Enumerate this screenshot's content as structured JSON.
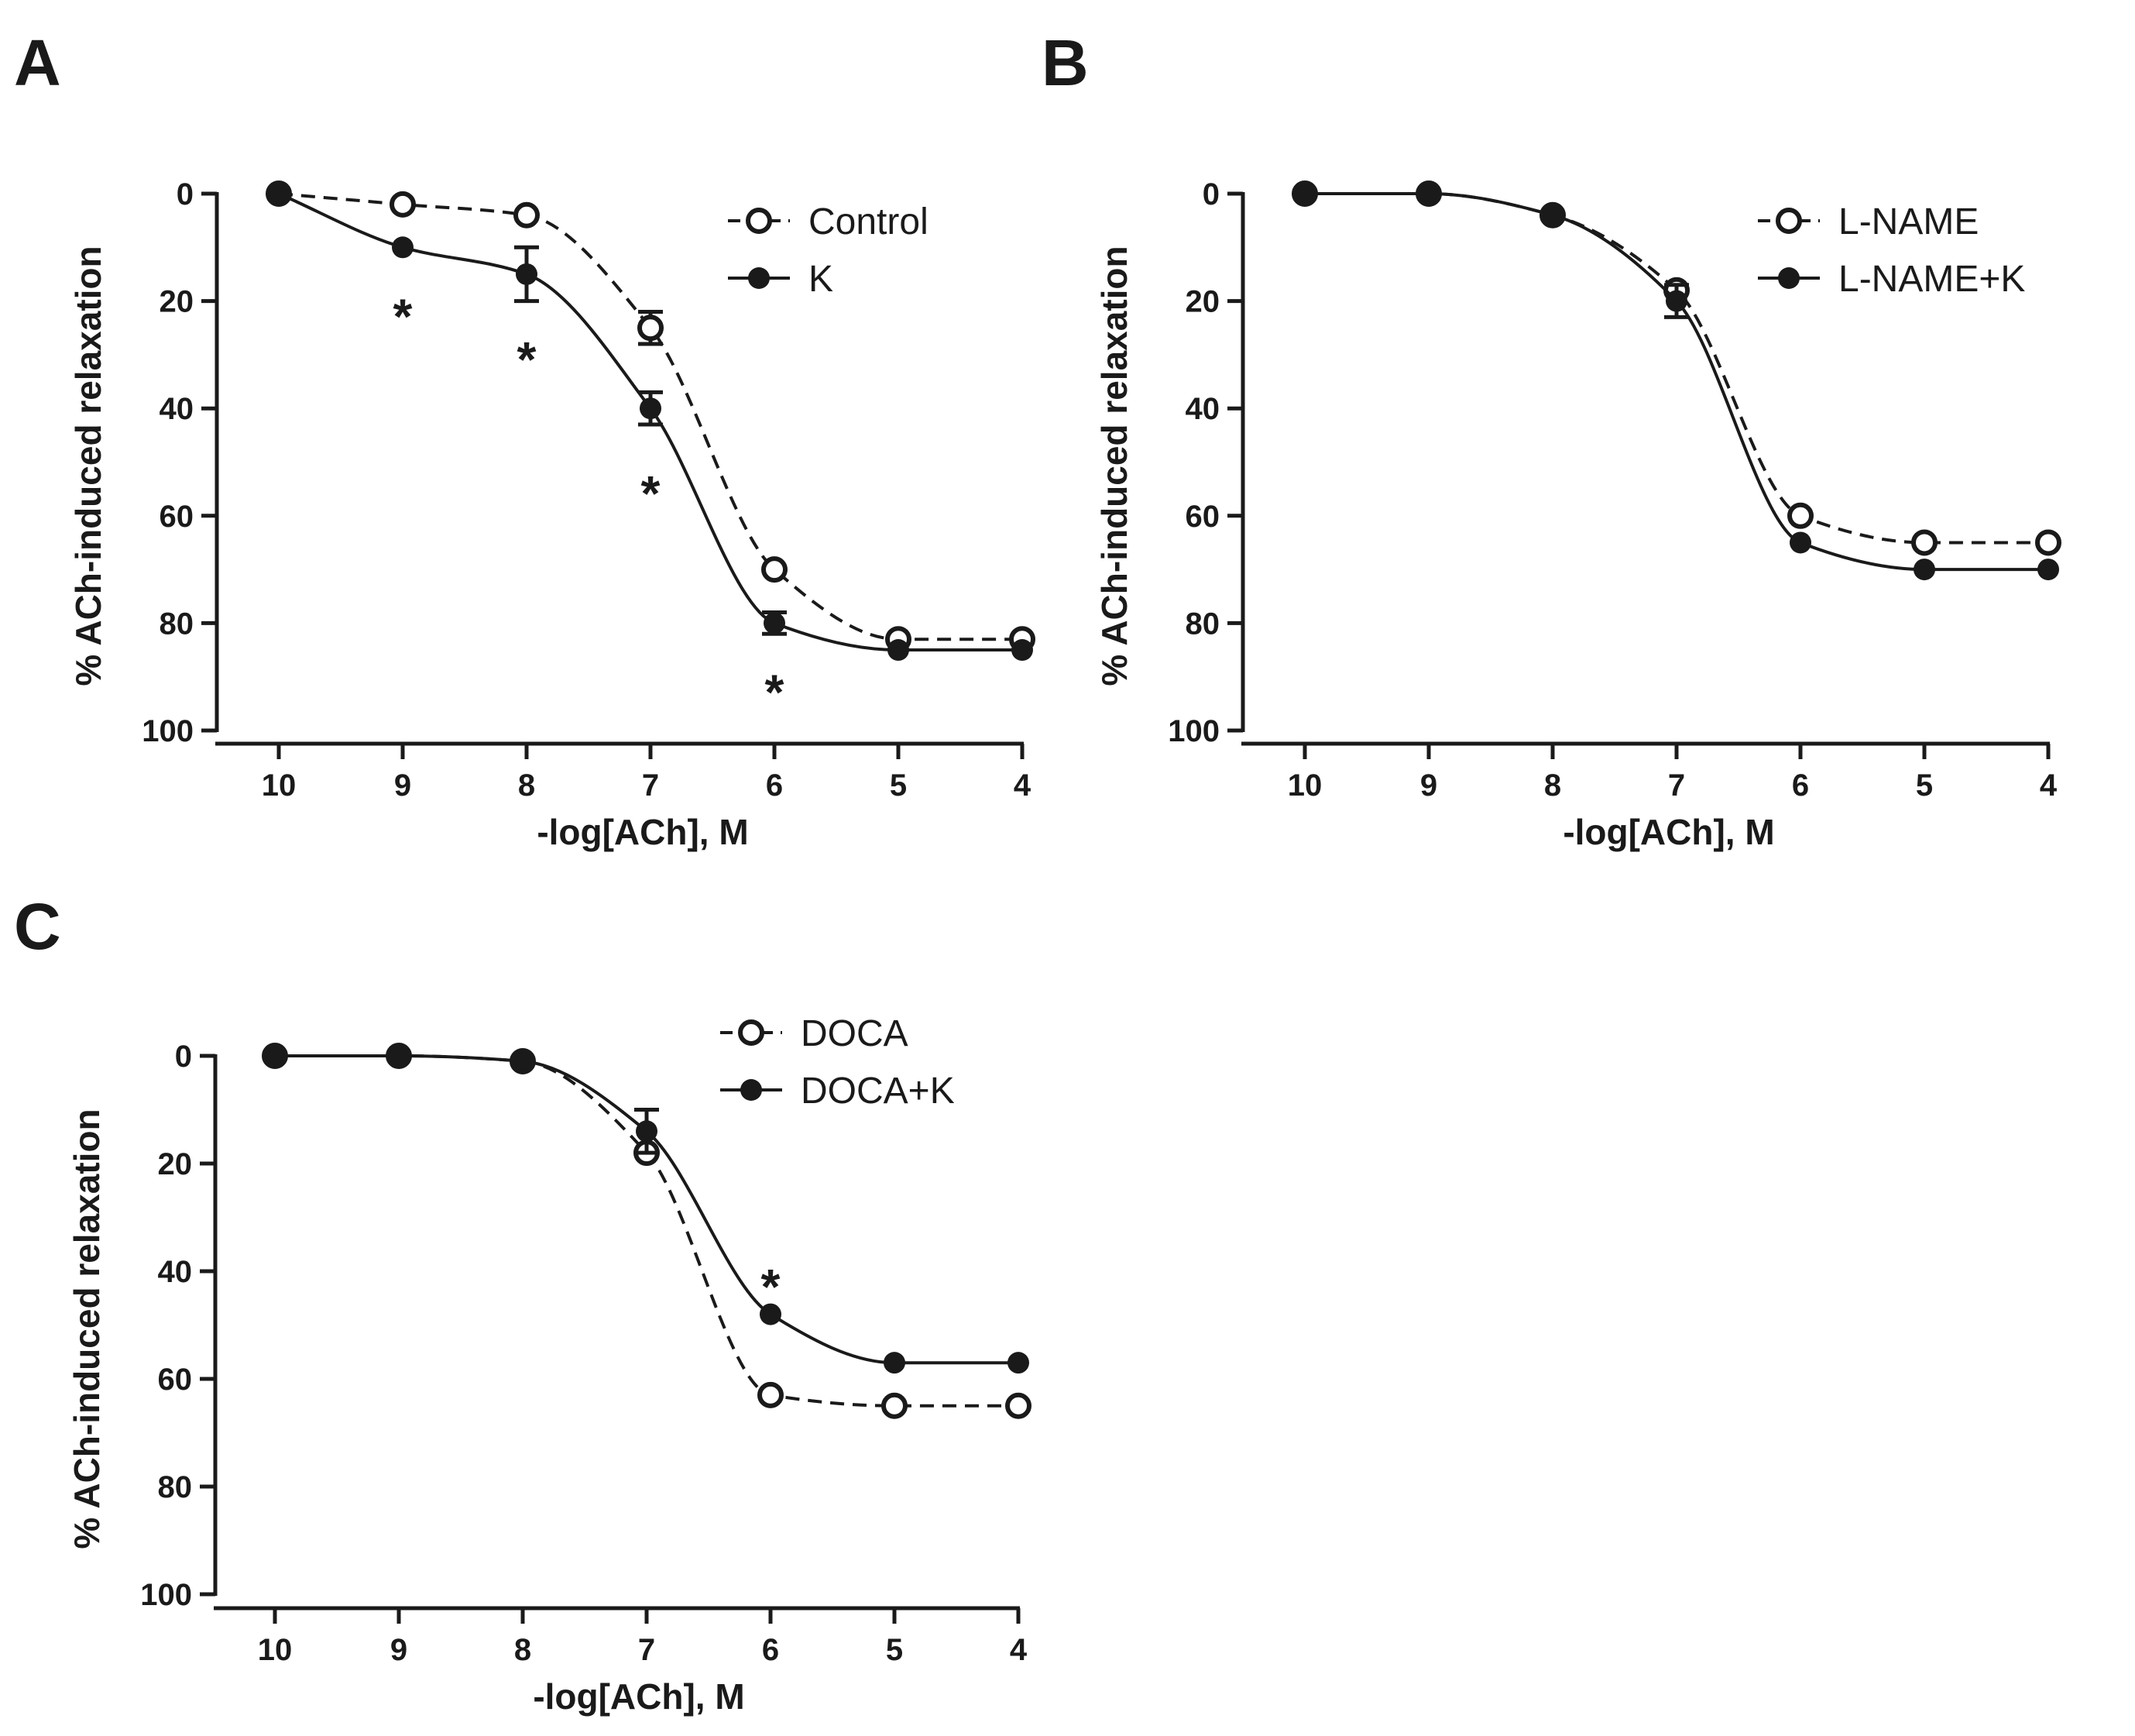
{
  "colors": {
    "ink": "#1a1a1a",
    "background": "#ffffff"
  },
  "chart_data": [
    {
      "panel": "A",
      "type": "line",
      "xlabel": "-log[ACh], M",
      "ylabel": "% ACh-induced relaxation",
      "xlim": [
        10,
        4
      ],
      "ylim": [
        0,
        100
      ],
      "y_inverted": true,
      "xticks": [
        "10",
        "9",
        "8",
        "7",
        "6",
        "5",
        "4"
      ],
      "yticks": [
        "0",
        "20",
        "40",
        "60",
        "80",
        "100"
      ],
      "legend_position": "top-right",
      "series": [
        {
          "name": "Control",
          "marker": "open-circle",
          "line": "dashed",
          "x": [
            10,
            9,
            8,
            7,
            6,
            5,
            4
          ],
          "y": [
            0,
            2,
            4,
            25,
            70,
            83,
            83
          ],
          "err": [
            0,
            0,
            0,
            3,
            0,
            0,
            0
          ]
        },
        {
          "name": "K",
          "marker": "filled-circle",
          "line": "solid",
          "x": [
            10,
            9,
            8,
            7,
            6,
            5,
            4
          ],
          "y": [
            0,
            10,
            15,
            40,
            80,
            85,
            85
          ],
          "err": [
            0,
            0,
            5,
            3,
            2,
            0,
            0
          ]
        }
      ],
      "annotations": [
        {
          "text": "*",
          "x": 9,
          "y": 22
        },
        {
          "text": "*",
          "x": 8,
          "y": 30
        },
        {
          "text": "*",
          "x": 7,
          "y": 55
        },
        {
          "text": "*",
          "x": 6,
          "y": 92
        }
      ]
    },
    {
      "panel": "B",
      "type": "line",
      "xlabel": "-log[ACh], M",
      "ylabel": "% ACh-induced relaxation",
      "xlim": [
        10,
        4
      ],
      "ylim": [
        0,
        100
      ],
      "y_inverted": true,
      "xticks": [
        "10",
        "9",
        "8",
        "7",
        "6",
        "5",
        "4"
      ],
      "yticks": [
        "0",
        "20",
        "40",
        "60",
        "80",
        "100"
      ],
      "legend_position": "top-right",
      "series": [
        {
          "name": "L-NAME",
          "marker": "open-circle",
          "line": "dashed",
          "x": [
            10,
            9,
            8,
            7,
            6,
            5,
            4
          ],
          "y": [
            0,
            0,
            4,
            18,
            60,
            65,
            65
          ],
          "err": [
            0,
            0,
            0,
            0,
            0,
            0,
            0
          ]
        },
        {
          "name": "L-NAME+K",
          "marker": "filled-circle",
          "line": "solid",
          "x": [
            10,
            9,
            8,
            7,
            6,
            5,
            4
          ],
          "y": [
            0,
            0,
            4,
            20,
            65,
            70,
            70
          ],
          "err": [
            0,
            0,
            0,
            3,
            0,
            0,
            0
          ]
        }
      ],
      "annotations": []
    },
    {
      "panel": "C",
      "type": "line",
      "xlabel": "-log[ACh], M",
      "ylabel": "% ACh-induced relaxation",
      "xlim": [
        10,
        4
      ],
      "ylim": [
        0,
        100
      ],
      "y_inverted": true,
      "xticks": [
        "10",
        "9",
        "8",
        "7",
        "6",
        "5",
        "4"
      ],
      "yticks": [
        "0",
        "20",
        "40",
        "60",
        "80",
        "100"
      ],
      "legend_position": "top-right",
      "series": [
        {
          "name": "DOCA",
          "marker": "open-circle",
          "line": "dashed",
          "x": [
            10,
            9,
            8,
            7,
            6,
            5,
            4
          ],
          "y": [
            0,
            0,
            1,
            18,
            63,
            65,
            65
          ],
          "err": [
            0,
            0,
            0,
            0,
            0,
            0,
            0
          ]
        },
        {
          "name": "DOCA+K",
          "marker": "filled-circle",
          "line": "solid",
          "x": [
            10,
            9,
            8,
            7,
            6,
            5,
            4
          ],
          "y": [
            0,
            0,
            1,
            14,
            48,
            57,
            57
          ],
          "err": [
            0,
            0,
            0,
            4,
            0,
            0,
            0
          ]
        }
      ],
      "annotations": [
        {
          "text": "*",
          "x": 6,
          "y": 42
        }
      ]
    }
  ]
}
